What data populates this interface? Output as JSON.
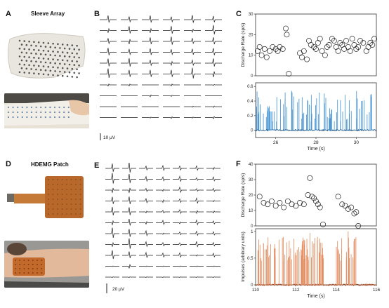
{
  "panels": {
    "A": {
      "letter": "A",
      "title": "Sleeve Array"
    },
    "B": {
      "letter": "B",
      "scale_label": "10 µV"
    },
    "C": {
      "letter": "C"
    },
    "D": {
      "letter": "D",
      "title": "HDEMG Patch"
    },
    "E": {
      "letter": "E",
      "scale_label": "20 µV"
    },
    "F": {
      "letter": "F"
    }
  },
  "colors": {
    "top_trace": "#3d8fd1",
    "bottom_trace": "#e0885a",
    "trace_dark_top": "#1a4f80",
    "trace_dark_bottom": "#b04a1e",
    "axis": "#333333",
    "sleeve": "#e7e4de",
    "patch": "#b8682a"
  },
  "chart_data": [
    {
      "id": "C-rate",
      "type": "scatter",
      "ylabel": "Discharge Rate (sp/s)",
      "xlim": [
        25,
        31
      ],
      "ylim": [
        0,
        30
      ],
      "yticks": [
        0,
        10,
        20,
        30
      ],
      "x": [
        25.1,
        25.2,
        25.3,
        25.45,
        25.55,
        25.7,
        25.85,
        26.0,
        26.1,
        26.2,
        26.35,
        26.5,
        26.55,
        26.65,
        27.2,
        27.3,
        27.4,
        27.55,
        27.65,
        27.75,
        27.9,
        28.0,
        28.1,
        28.2,
        28.3,
        28.45,
        28.55,
        28.65,
        28.8,
        28.9,
        29.0,
        29.1,
        29.2,
        29.3,
        29.4,
        29.5,
        29.6,
        29.7,
        29.8,
        29.9,
        30.0,
        30.1,
        30.2,
        30.35,
        30.5,
        30.6,
        30.7,
        30.8,
        30.9
      ],
      "y": [
        12,
        14,
        10,
        13,
        9,
        12,
        14,
        13,
        12,
        14,
        13,
        23,
        20,
        1,
        11,
        9,
        12,
        8,
        17,
        15,
        14,
        13,
        16,
        18,
        12,
        10,
        14,
        15,
        18,
        17,
        14,
        12,
        16,
        15,
        13,
        17,
        14,
        12,
        18,
        15,
        13,
        14,
        17,
        16,
        12,
        14,
        16,
        15,
        18
      ]
    },
    {
      "id": "C-impulses",
      "type": "line",
      "xlabel": "Time (s)",
      "xlim": [
        25,
        31
      ],
      "ylim": [
        -0.1,
        0.65
      ],
      "xticks": [
        26,
        28,
        30
      ],
      "yticks": [
        0,
        0.2,
        0.4,
        0.6
      ]
    },
    {
      "id": "F-rate",
      "type": "scatter",
      "ylabel": "Discharge Rate (sp/s)",
      "xlim": [
        110,
        116
      ],
      "ylim": [
        0,
        40
      ],
      "yticks": [
        0,
        10,
        20,
        30,
        40
      ],
      "x": [
        110.2,
        110.4,
        110.6,
        110.8,
        111.0,
        111.2,
        111.4,
        111.6,
        111.8,
        112.0,
        112.2,
        112.4,
        112.6,
        112.7,
        112.8,
        112.9,
        113.0,
        113.1,
        113.2,
        113.35,
        114.1,
        114.3,
        114.45,
        114.6,
        114.75,
        114.9,
        115.0,
        115.1
      ],
      "y": [
        19,
        15,
        14,
        16,
        13,
        15,
        12,
        16,
        14,
        13,
        15,
        14,
        20,
        31,
        19,
        18,
        16,
        14,
        12,
        1,
        19,
        14,
        13,
        11,
        12,
        8,
        9,
        0
      ]
    },
    {
      "id": "F-impulses",
      "type": "line",
      "ylabel": "Impulses (arbitrary units)",
      "xlabel": "Time (s)",
      "xlim": [
        110,
        116
      ],
      "ylim": [
        0,
        1.05
      ],
      "xticks": [
        110,
        112,
        114,
        116
      ],
      "yticks": [
        0,
        0.5,
        1
      ]
    }
  ]
}
